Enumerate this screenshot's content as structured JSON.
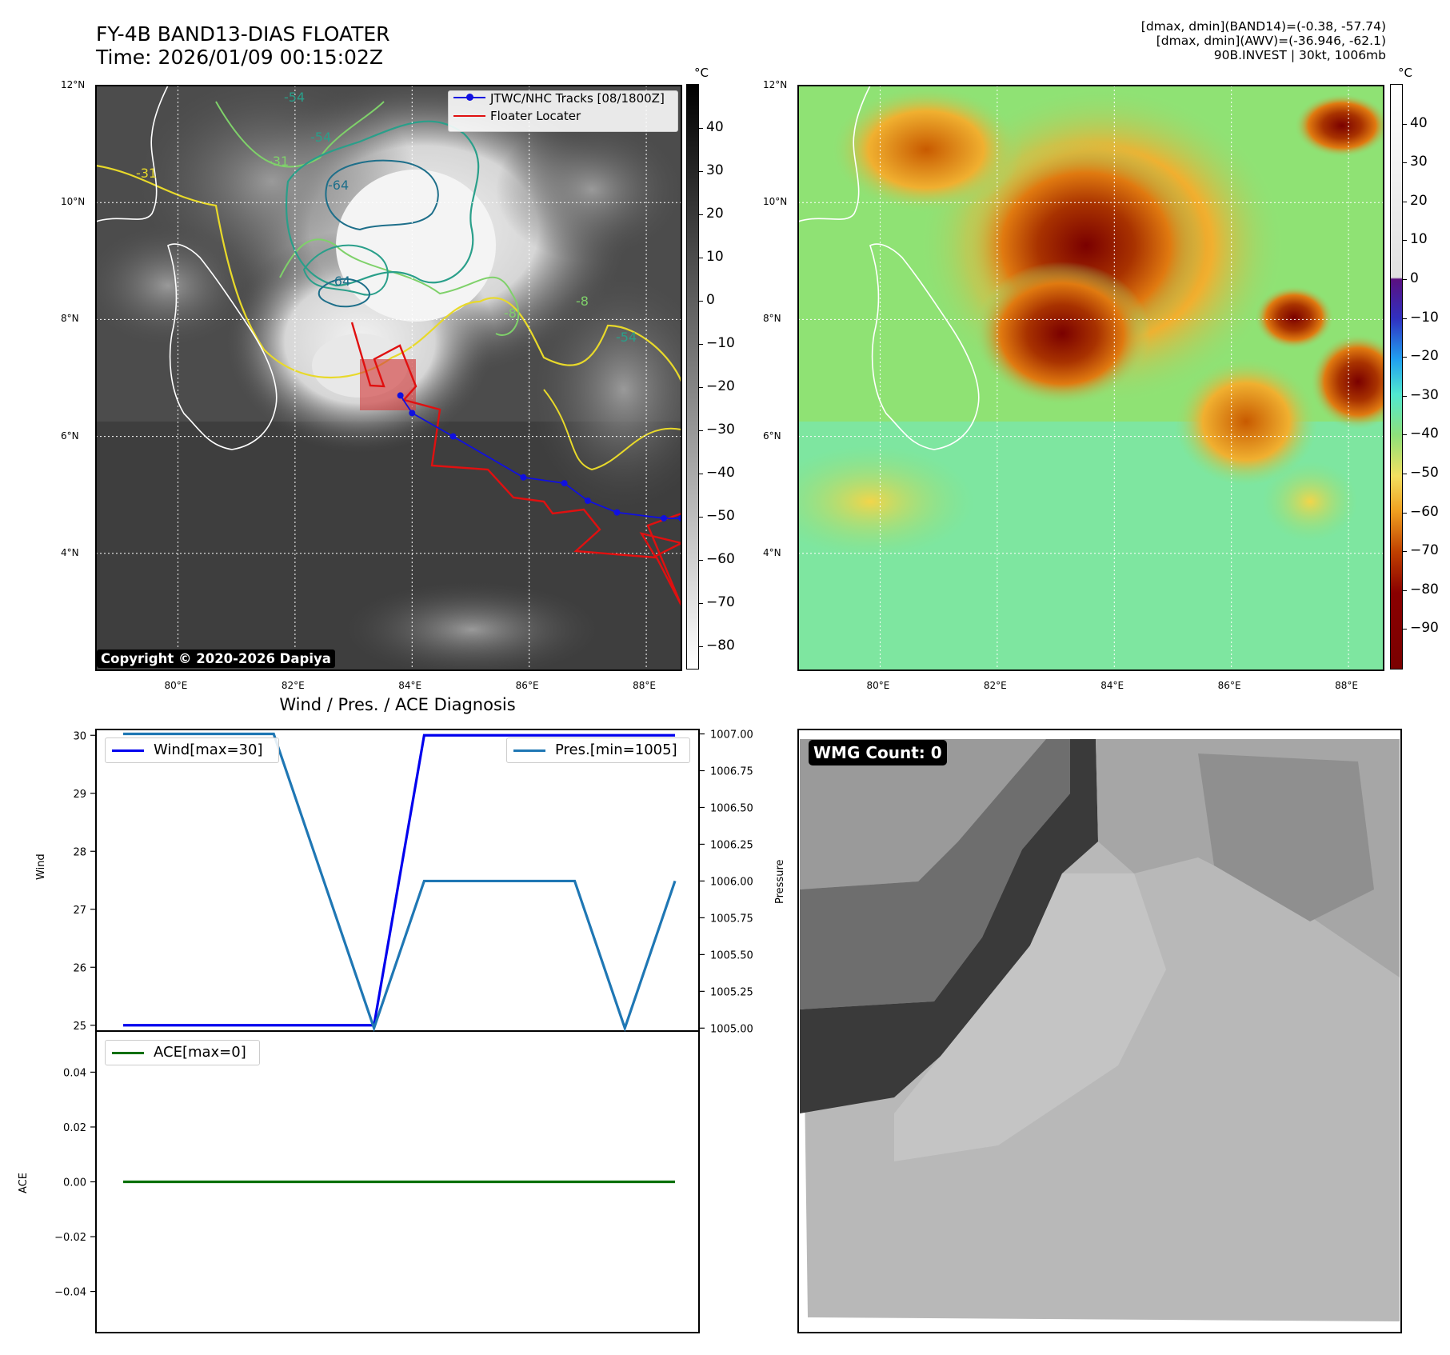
{
  "header": {
    "title_line1": "FY-4B BAND13-DIAS FLOATER",
    "title_line2": "Time: 2026/01/09 00:15:02Z",
    "info_line1": "[dmax, dmin](BAND14)=(-0.38, -57.74)",
    "info_line2": "[dmax, dmin](AWV)=(-36.946, -62.1)",
    "info_line3": "90B.INVEST | 30kt, 1006mb"
  },
  "map_left": {
    "lat_labels": [
      "12°N",
      "10°N",
      "8°N",
      "6°N",
      "4°N"
    ],
    "lon_labels": [
      "80°E",
      "82°E",
      "84°E",
      "86°E",
      "88°E"
    ],
    "lon_range": [
      78.6,
      88.6
    ],
    "lat_range": [
      2.0,
      12.0
    ],
    "legend": {
      "track_label": "JTWC/NHC Tracks [08/1800Z]",
      "floater_label": "Floater Locater"
    },
    "contour_labels": [
      "-54",
      "-31",
      "-64",
      "-64",
      "-54",
      "-31",
      "-8",
      "-8",
      "-54"
    ],
    "copyright": "Copyright © 2020-2026 Dapiya",
    "colorbar_unit": "°C",
    "colorbar_ticks": [
      "40",
      "30",
      "20",
      "10",
      "0",
      "−10",
      "−20",
      "−30",
      "−40",
      "−50",
      "−60",
      "−70",
      "−80"
    ],
    "colorbar_range": [
      50,
      -85
    ],
    "track_points": [
      [
        83.8,
        6.7
      ],
      [
        84.0,
        6.4
      ],
      [
        84.7,
        6.0
      ],
      [
        85.9,
        5.3
      ],
      [
        86.6,
        5.2
      ],
      [
        87.0,
        4.9
      ],
      [
        87.5,
        4.7
      ],
      [
        88.3,
        4.6
      ],
      [
        88.6,
        4.6
      ]
    ],
    "colors": {
      "track": "#1010e0",
      "floater": "#e01010",
      "contour_yellow": "#e8d92a",
      "contour_lightgreen": "#7fd16a",
      "contour_teal": "#2a9f8a",
      "contour_darkteal": "#1e6f8a"
    }
  },
  "map_right": {
    "lat_labels": [
      "12°N",
      "10°N",
      "8°N",
      "6°N",
      "4°N"
    ],
    "lon_labels": [
      "80°E",
      "82°E",
      "84°E",
      "86°E",
      "88°E"
    ],
    "colorbar_unit": "°C",
    "colorbar_ticks": [
      "40",
      "30",
      "20",
      "10",
      "0",
      "−10",
      "−20",
      "−30",
      "−40",
      "−50",
      "−60",
      "−70",
      "−80",
      "−90"
    ],
    "colorbar_range": [
      50,
      -100
    ]
  },
  "diagnosis": {
    "title": "Wind / Pres. / ACE Diagnosis",
    "wind_ylabel": "Wind",
    "pressure_ylabel": "Pressure",
    "ace_ylabel": "ACE",
    "wind_legend": "Wind[max=30]",
    "pres_legend": "Pres.[min=1005]",
    "ace_legend": "ACE[max=0]",
    "wind_ticks": [
      "30",
      "29",
      "28",
      "27",
      "26",
      "25"
    ],
    "pres_ticks": [
      "1007.00",
      "1006.75",
      "1006.50",
      "1006.25",
      "1006.00",
      "1005.75",
      "1005.50",
      "1005.25",
      "1005.00"
    ],
    "ace_ticks": [
      "0.04",
      "0.02",
      "0.00",
      "−0.02",
      "−0.04"
    ],
    "colors": {
      "wind": "#0000ee",
      "pressure": "#1f77b4",
      "ace": "#007000"
    }
  },
  "wmg": {
    "label": "WMG Count: 0"
  },
  "chart_data": [
    {
      "type": "line",
      "title": "Wind / Pres. / ACE Diagnosis",
      "x": [
        0,
        1,
        2,
        3,
        4,
        5,
        6,
        7,
        8,
        9,
        10,
        11
      ],
      "series": [
        {
          "name": "Wind[max=30]",
          "values": [
            25,
            25,
            25,
            25,
            25,
            25,
            30,
            30,
            30,
            30,
            30,
            30
          ],
          "ylim": [
            24.9,
            30.1
          ]
        },
        {
          "name": "Pres.[min=1005]",
          "values": [
            1007,
            1007,
            1007,
            1007,
            1006,
            1005,
            1006,
            1006,
            1006,
            1006,
            1005,
            1006
          ],
          "ylim": [
            1004.98,
            1007.03
          ]
        }
      ],
      "ylabel": "Wind",
      "y2label": "Pressure",
      "legend": "top-left / top-right"
    },
    {
      "type": "line",
      "x": [
        0,
        11
      ],
      "series": [
        {
          "name": "ACE[max=0]",
          "values": [
            0,
            0
          ]
        }
      ],
      "ylabel": "ACE",
      "ylim": [
        -0.055,
        0.055
      ]
    }
  ]
}
